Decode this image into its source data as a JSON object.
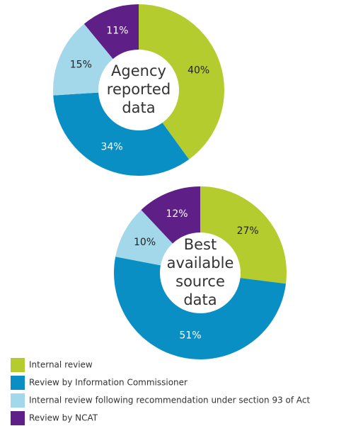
{
  "chart_data": [
    {
      "type": "donut",
      "title": "Agency reported data",
      "categories": [
        "Internal review",
        "Review by Information Commissioner",
        "Internal review following recommendation under section 93 of Act",
        "Review by NCAT"
      ],
      "values": [
        40,
        34,
        15,
        11
      ],
      "value_labels": [
        "40%",
        "34%",
        "15%",
        "11%"
      ],
      "colors": [
        "#b5cc2e",
        "#0a8fc4",
        "#a3d8ea",
        "#5e1f87"
      ]
    },
    {
      "type": "donut",
      "title": "Best available source data",
      "categories": [
        "Internal review",
        "Review by Information Commissioner",
        "Internal review following recommendation under section 93 of Act",
        "Review by NCAT"
      ],
      "values": [
        27,
        51,
        10,
        12
      ],
      "value_labels": [
        "27%",
        "51%",
        "10%",
        "12%"
      ],
      "colors": [
        "#b5cc2e",
        "#0a8fc4",
        "#a3d8ea",
        "#5e1f87"
      ]
    }
  ]
}
